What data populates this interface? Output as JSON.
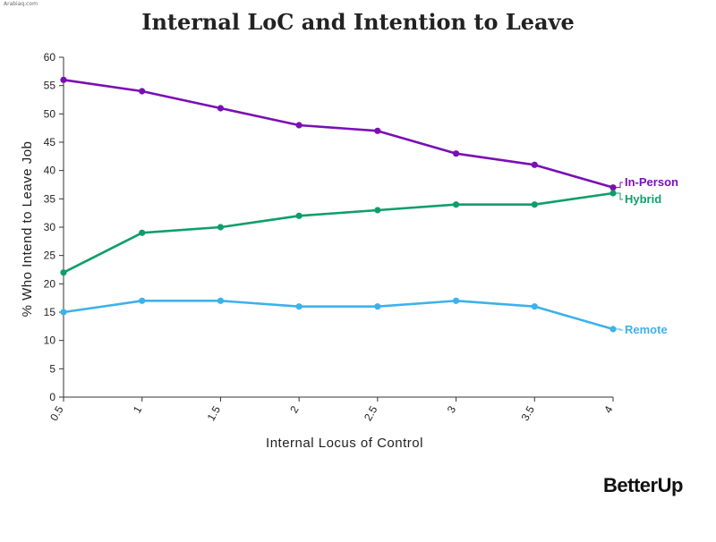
{
  "watermark": "Arabiaq.com",
  "brand": "BetterUp",
  "chart_data": {
    "type": "line",
    "title": "Internal LoC and Intention to Leave",
    "xlabel": "Internal Locus of Control",
    "ylabel": "% Who Intend to Leave Job",
    "x": [
      0.5,
      1,
      1.5,
      2,
      2.5,
      3,
      3.5,
      4
    ],
    "x_tick_labels": [
      "0.5",
      "1",
      "1.5",
      "2",
      "2.5",
      "3",
      "3.5",
      "4"
    ],
    "ylim": [
      0,
      60
    ],
    "y_ticks": [
      0,
      5,
      10,
      15,
      20,
      25,
      30,
      35,
      40,
      45,
      50,
      55,
      60
    ],
    "grid": false,
    "legend": "inline labels at line ends",
    "series": [
      {
        "name": "In-Person",
        "color": "#7a0fb5",
        "values": [
          56,
          54,
          51,
          48,
          47,
          43,
          41,
          37
        ]
      },
      {
        "name": "Hybrid",
        "color": "#0f9e6a",
        "values": [
          22,
          29,
          30,
          32,
          33,
          34,
          34,
          36
        ]
      },
      {
        "name": "Remote",
        "color": "#3db1ea",
        "values": [
          15,
          17,
          17,
          16,
          16,
          17,
          16,
          12
        ]
      }
    ]
  }
}
